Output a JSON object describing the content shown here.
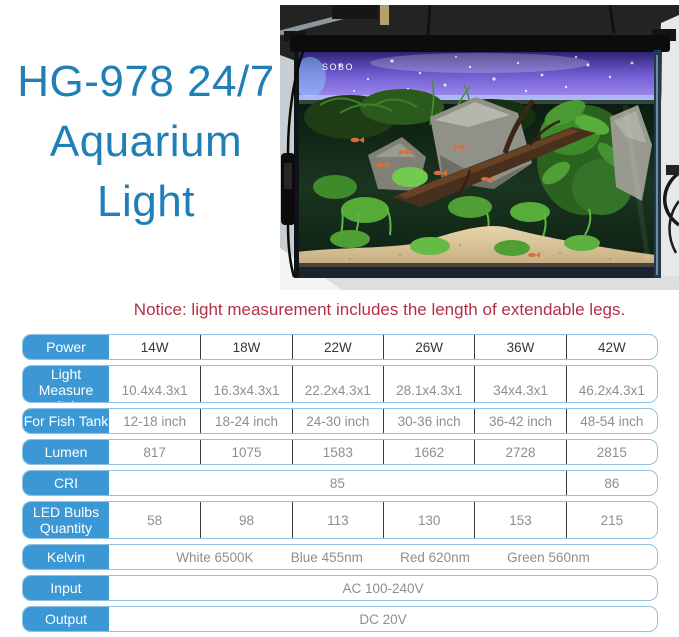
{
  "colors": {
    "title_blue": "#217FB8",
    "notice_red": "#B23043",
    "header_blue": "#3C98D4",
    "row_border": "#8FC2E2",
    "value_gray": "#8E8E8E",
    "value_dark": "#383838"
  },
  "header": {
    "title_lines": [
      "HG-978 24/7",
      "Aquarium",
      "Light"
    ]
  },
  "photo": {
    "tank_brand": "SOBO"
  },
  "notice": {
    "text": "Notice: light measurement includes the length of extendable legs."
  },
  "table": {
    "rows": [
      {
        "label": "Power",
        "tall": false,
        "emphasis": true,
        "cells": [
          {
            "text": "14W",
            "span": 1
          },
          {
            "text": "18W",
            "span": 1
          },
          {
            "text": "22W",
            "span": 1
          },
          {
            "text": "26W",
            "span": 1
          },
          {
            "text": "36W",
            "span": 1
          },
          {
            "text": "42W",
            "span": 1
          }
        ]
      },
      {
        "label": "Light Measure (In)",
        "tall": true,
        "emphasis": false,
        "cells": [
          {
            "text": "10.4x4.3x1",
            "span": 1
          },
          {
            "text": "16.3x4.3x1",
            "span": 1
          },
          {
            "text": "22.2x4.3x1",
            "span": 1
          },
          {
            "text": "28.1x4.3x1",
            "span": 1
          },
          {
            "text": "34x4.3x1",
            "span": 1
          },
          {
            "text": "46.2x4.3x1",
            "span": 1
          }
        ]
      },
      {
        "label": "For Fish Tank",
        "tall": false,
        "emphasis": false,
        "cells": [
          {
            "text": "12-18 inch",
            "span": 1
          },
          {
            "text": "18-24 inch",
            "span": 1
          },
          {
            "text": "24-30 inch",
            "span": 1
          },
          {
            "text": "30-36 inch",
            "span": 1
          },
          {
            "text": "36-42 inch",
            "span": 1
          },
          {
            "text": "48-54 inch",
            "span": 1
          }
        ]
      },
      {
        "label": "Lumen",
        "tall": false,
        "emphasis": false,
        "cells": [
          {
            "text": "817",
            "span": 1
          },
          {
            "text": "1075",
            "span": 1
          },
          {
            "text": "1583",
            "span": 1
          },
          {
            "text": "1662",
            "span": 1
          },
          {
            "text": "2728",
            "span": 1
          },
          {
            "text": "2815",
            "span": 1
          }
        ]
      },
      {
        "label": "CRI",
        "tall": false,
        "emphasis": false,
        "cells": [
          {
            "text": "85",
            "span": 5
          },
          {
            "text": "86",
            "span": 1
          }
        ]
      },
      {
        "label": "LED Bulbs Quantity",
        "tall": true,
        "emphasis": false,
        "cells": [
          {
            "text": "58",
            "span": 1
          },
          {
            "text": "98",
            "span": 1
          },
          {
            "text": "113",
            "span": 1
          },
          {
            "text": "130",
            "span": 1
          },
          {
            "text": "153",
            "span": 1
          },
          {
            "text": "215",
            "span": 1
          }
        ]
      },
      {
        "label": "Kelvin",
        "tall": false,
        "emphasis": false,
        "cells": [
          {
            "parts": [
              "White 6500K",
              "Blue 455nm",
              "Red 620nm",
              "Green 560nm"
            ],
            "span": 6
          }
        ]
      },
      {
        "label": "Input",
        "tall": false,
        "emphasis": false,
        "cells": [
          {
            "text": "AC 100-240V",
            "span": 6
          }
        ]
      },
      {
        "label": "Output",
        "tall": false,
        "emphasis": false,
        "cells": [
          {
            "text": "DC 20V",
            "span": 6
          }
        ]
      }
    ]
  }
}
